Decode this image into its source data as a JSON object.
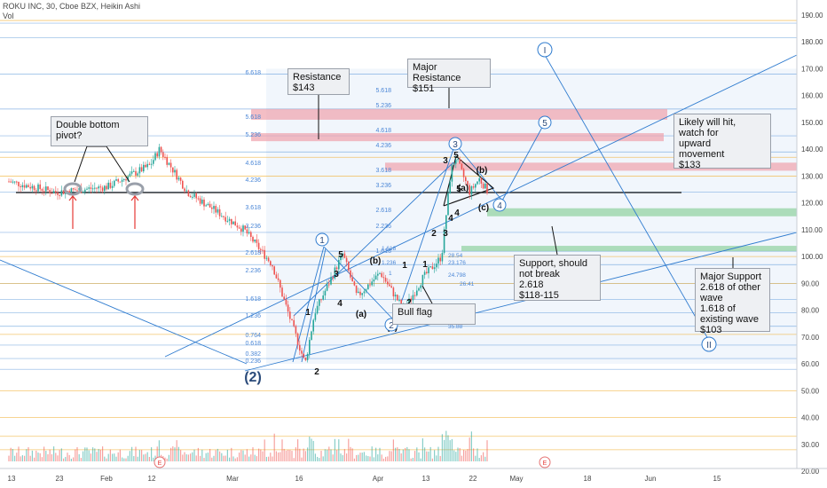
{
  "header": {
    "symbol_line": "ROKU INC, 30, Cboe BZX, Heikin Ashi",
    "volume_label": "Vol"
  },
  "colors": {
    "up": "#26a69a",
    "down": "#ef5350",
    "line": "#2e7bcf",
    "hline_orange": "#f2b84b",
    "fib_text": "#4a86d6",
    "resistance_zone": "#f0a3ad",
    "support_zone": "#8fd19e",
    "background_fill": "#e6eefa"
  },
  "chart_data": {
    "type": "candlestick",
    "title": "ROKU INC, 30, Cboe BZX, Heikin Ashi",
    "x_tick_labels": [
      "13",
      "23",
      "Feb",
      "12",
      "Mar",
      "16",
      "Apr",
      "13",
      "22",
      "May",
      "18",
      "Jun",
      "15"
    ],
    "y_axis_labels": [
      "190.00",
      "180.00",
      "170.00",
      "160.00",
      "150.00",
      "140.00",
      "130.00",
      "120.00",
      "110.00",
      "100.00",
      "90.00",
      "80.00",
      "70.00",
      "60.00",
      "50.00",
      "40.00",
      "30.00",
      "20.00"
    ],
    "ylim": [
      20,
      193
    ],
    "price_path_key_points": [
      {
        "t": "Jan 13",
        "price": 128
      },
      {
        "t": "Jan 23",
        "price": 124
      },
      {
        "t": "Feb 3",
        "price": 126
      },
      {
        "t": "Feb 12",
        "price": 134
      },
      {
        "t": "Feb 14",
        "price": 140
      },
      {
        "t": "Feb 20",
        "price": 124
      },
      {
        "t": "Mar 3",
        "price": 110
      },
      {
        "t": "Mar 9",
        "price": 97
      },
      {
        "t": "Mar 16",
        "price": 60
      },
      {
        "t": "Mar 18",
        "price": 79
      },
      {
        "t": "Mar 24",
        "price": 101
      },
      {
        "t": "Mar 27",
        "price": 85
      },
      {
        "t": "Apr 1",
        "price": 94
      },
      {
        "t": "Apr 6",
        "price": 80
      },
      {
        "t": "Apr 10",
        "price": 92
      },
      {
        "t": "Apr 14",
        "price": 100
      },
      {
        "t": "Apr 16",
        "price": 132
      },
      {
        "t": "Apr 17",
        "price": 137
      },
      {
        "t": "Apr 20",
        "price": 124
      },
      {
        "t": "Apr 22",
        "price": 129
      },
      {
        "t": "Apr 24",
        "price": 124
      }
    ],
    "horizontal_levels_blue": [
      187,
      181.5,
      168,
      155,
      145,
      139,
      124,
      109,
      102,
      97,
      90,
      84,
      79,
      74,
      67,
      62,
      58
    ],
    "horizontal_levels_orange": [
      188,
      137,
      130,
      100,
      90,
      71,
      50,
      40,
      33,
      28
    ],
    "zones": [
      {
        "label": "resistance",
        "from": 151,
        "to": 155
      },
      {
        "label": "resistance",
        "from": 143,
        "to": 146
      },
      {
        "label": "resistance",
        "from": 132,
        "to": 135
      },
      {
        "label": "support",
        "from": 115,
        "to": 118
      },
      {
        "label": "support",
        "from": 102,
        "to": 104
      }
    ],
    "fib_labels_left": [
      "6.618",
      "5.618",
      "5.236",
      "4.618",
      "4.236",
      "3.618",
      "3.236",
      "2.618",
      "2.236",
      "1.618",
      "1.236",
      "0.764",
      "0.618",
      "0.382",
      "0.236"
    ],
    "fib_labels_right": [
      "5.618",
      "5.236",
      "4.618",
      "4.236",
      "3.618",
      "3.236",
      "2.618",
      "2.236",
      "1.618"
    ],
    "fib_labels_small": [
      "1.618",
      "1.236",
      "1",
      "24.798",
      "23.176",
      "28.54",
      "35.88",
      "26.41"
    ],
    "wave_labels": [
      "1",
      "2",
      "3",
      "4",
      "5",
      "(a)",
      "(b)",
      "(c)",
      "(2)",
      "1",
      "2",
      "3",
      "4",
      "5",
      "(a)",
      "(b)",
      "(c)",
      "1",
      "2",
      "3",
      "4",
      "5"
    ],
    "circled_labels": [
      "1",
      "2",
      "3",
      "4",
      "5",
      "I",
      "II"
    ],
    "event_markers": [
      "E",
      "E"
    ],
    "annotations": [
      "Double bottom\npivot?",
      "Resistance\n$143",
      "Major Resistance\n$151",
      "Likely will hit,\nwatch for\nupward\nmovement\n$133",
      "Support, should\nnot break\n2.618\n$118-115",
      "Major Support\n2.618 of other\nwave\n1.618 of\nexisting wave\n$103",
      "Bull flag"
    ]
  },
  "callouts": {
    "double_bottom": "Double bottom\npivot?",
    "resistance_143": "Resistance\n$143",
    "major_resistance": "Major Resistance\n$151",
    "likely_hit": "Likely will hit,\nwatch for\nupward\nmovement\n$133",
    "support": "Support, should\nnot break\n2.618\n$118-115",
    "major_support": "Major Support\n2.618 of other\nwave\n1.618 of\nexisting wave\n$103",
    "bull_flag": "Bull flag"
  }
}
